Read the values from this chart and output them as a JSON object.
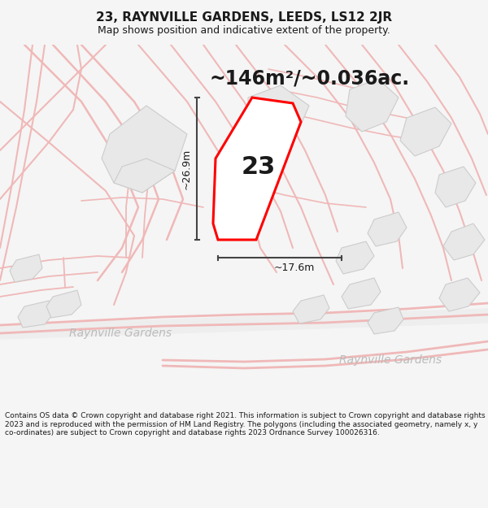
{
  "title": "23, RAYNVILLE GARDENS, LEEDS, LS12 2JR",
  "subtitle": "Map shows position and indicative extent of the property.",
  "area_text": "~146m²/~0.036ac.",
  "dim_height": "~26.9m",
  "dim_width": "~17.6m",
  "plot_number": "23",
  "street_label1": "Raynville Gardens",
  "street_label2": "Raynville Gardens",
  "footer": "Contains OS data © Crown copyright and database right 2021. This information is subject to Crown copyright and database rights 2023 and is reproduced with the permission of HM Land Registry. The polygons (including the associated geometry, namely x, y co-ordinates) are subject to Crown copyright and database rights 2023 Ordnance Survey 100026316.",
  "bg_color": "#f5f5f5",
  "map_bg": "#ffffff",
  "building_fill": "#e8e8e8",
  "building_stroke": "#cccccc",
  "highlight_fill": "#ffffff",
  "highlight_stroke": "#ff0000",
  "road_line_color": "#f0b8b8",
  "road_line_color2": "#e8c8c8",
  "dim_line_color": "#444444",
  "text_color": "#1a1a1a",
  "street_text_color": "#bbbbbb",
  "title_fontsize": 11,
  "subtitle_fontsize": 9,
  "area_fontsize": 17,
  "plot_num_fontsize": 22,
  "dim_fontsize": 9,
  "street_fontsize": 10,
  "footer_fontsize": 6.5
}
